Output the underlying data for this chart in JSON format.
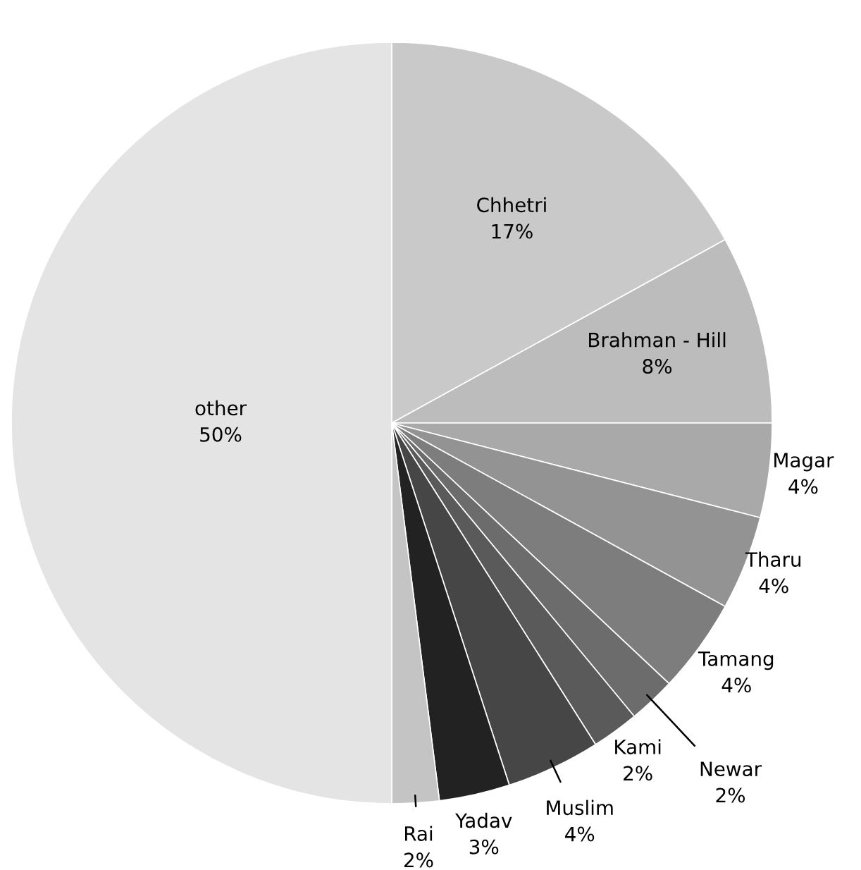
{
  "chart_data": {
    "type": "pie",
    "categories": [
      "Chhetri",
      "Brahman - Hill",
      "Magar",
      "Tharu",
      "Tamang",
      "Newar",
      "Kami",
      "Muslim",
      "Yadav",
      "Rai",
      "other"
    ],
    "values": [
      17,
      8,
      4,
      4,
      4,
      2,
      2,
      4,
      3,
      2,
      50
    ],
    "colors": [
      "#c9c9c9",
      "#bcbcbc",
      "#a9a9a9",
      "#939393",
      "#7d7d7d",
      "#6c6c6c",
      "#5a5a5a",
      "#464646",
      "#222222",
      "#c4c4c4",
      "#e4e4e4"
    ],
    "value_labels": [
      "17%",
      "8%",
      "4%",
      "4%",
      "4%",
      "2%",
      "2%",
      "4%",
      "3%",
      "2%",
      "50%"
    ]
  }
}
